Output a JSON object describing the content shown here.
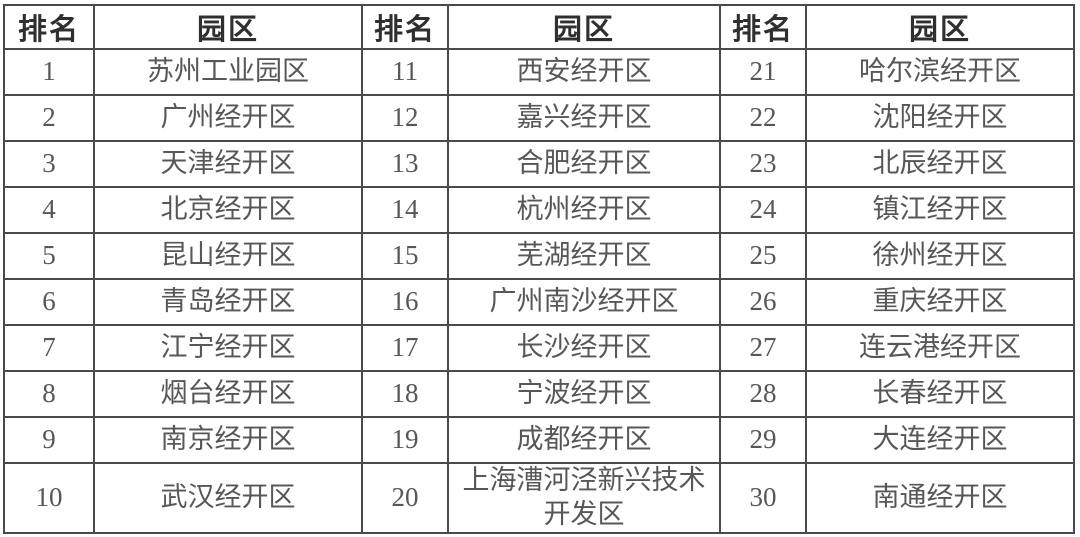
{
  "colors": {
    "background": "#ffffff",
    "border": "#4a4a4a",
    "header_text": "#2f2f2f",
    "cell_text": "#575757"
  },
  "chart_data": {
    "type": "table",
    "title": "",
    "headers": [
      "排名",
      "园区",
      "排名",
      "园区",
      "排名",
      "园区"
    ],
    "rows": [
      [
        "1",
        "苏州工业园区",
        "11",
        "西安经开区",
        "21",
        "哈尔滨经开区"
      ],
      [
        "2",
        "广州经开区",
        "12",
        "嘉兴经开区",
        "22",
        "沈阳经开区"
      ],
      [
        "3",
        "天津经开区",
        "13",
        "合肥经开区",
        "23",
        "北辰经开区"
      ],
      [
        "4",
        "北京经开区",
        "14",
        "杭州经开区",
        "24",
        "镇江经开区"
      ],
      [
        "5",
        "昆山经开区",
        "15",
        "芜湖经开区",
        "25",
        "徐州经开区"
      ],
      [
        "6",
        "青岛经开区",
        "16",
        "广州南沙经开区",
        "26",
        "重庆经开区"
      ],
      [
        "7",
        "江宁经开区",
        "17",
        "长沙经开区",
        "27",
        "连云港经开区"
      ],
      [
        "8",
        "烟台经开区",
        "18",
        "宁波经开区",
        "28",
        "长春经开区"
      ],
      [
        "9",
        "南京经开区",
        "19",
        "成都经开区",
        "29",
        "大连经开区"
      ],
      [
        "10",
        "武汉经开区",
        "20",
        "上海漕河泾新兴技术开发区",
        "30",
        "南通经开区"
      ]
    ]
  }
}
